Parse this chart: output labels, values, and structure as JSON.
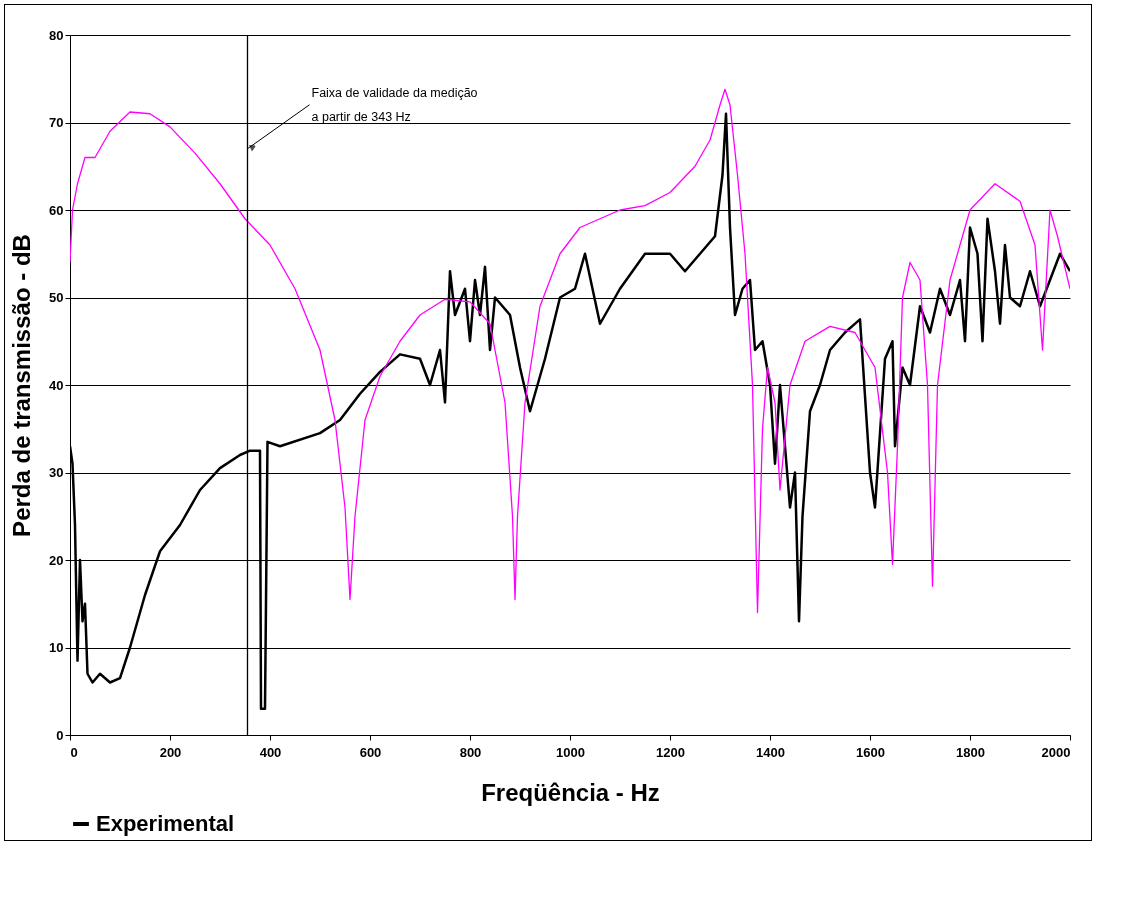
{
  "chart_data": {
    "type": "line",
    "xlabel": "Freqüência - Hz",
    "ylabel": "Perda de transmissão - dB",
    "xlim": [
      0,
      2000
    ],
    "ylim": [
      0,
      80
    ],
    "xticks": [
      0,
      200,
      400,
      600,
      800,
      1000,
      1200,
      1400,
      1600,
      1800,
      2000
    ],
    "yticks": [
      0,
      10,
      20,
      30,
      40,
      50,
      60,
      70,
      80
    ],
    "grid": "y",
    "legend": "bottom",
    "line_style": "solid",
    "ref_lines": [
      {
        "axis": "x",
        "value": 355,
        "color": "#000000"
      }
    ],
    "annotations": [
      {
        "text": "Faixa de validade da medição\na partir de 343 Hz",
        "x": 355,
        "y": 67
      }
    ],
    "series": [
      {
        "name": "Experimental",
        "color": "#000000",
        "x": [
          0,
          5,
          10,
          15,
          20,
          25,
          30,
          35,
          45,
          60,
          80,
          100,
          120,
          150,
          180,
          220,
          260,
          300,
          340,
          360,
          380,
          382,
          390,
          395,
          420,
          500,
          540,
          580,
          620,
          660,
          700,
          720,
          740,
          750,
          760,
          770,
          790,
          800,
          810,
          820,
          830,
          840,
          850,
          880,
          900,
          920,
          950,
          980,
          1010,
          1030,
          1060,
          1100,
          1150,
          1200,
          1230,
          1260,
          1290,
          1305,
          1312,
          1320,
          1330,
          1345,
          1360,
          1370,
          1385,
          1400,
          1410,
          1420,
          1440,
          1450,
          1458,
          1465,
          1480,
          1500,
          1520,
          1550,
          1580,
          1600,
          1610,
          1630,
          1645,
          1650,
          1665,
          1680,
          1700,
          1720,
          1740,
          1760,
          1780,
          1790,
          1800,
          1815,
          1825,
          1835,
          1850,
          1860,
          1870,
          1880,
          1900,
          1920,
          1940,
          1960,
          1980,
          2000
        ],
        "values": [
          33,
          31,
          24,
          8.5,
          20,
          13,
          15,
          7,
          6,
          7,
          6,
          6.5,
          10,
          16,
          21,
          24,
          28,
          30.5,
          32,
          32.5,
          32.5,
          3,
          3,
          33.5,
          33,
          34.5,
          36,
          39,
          41.5,
          43.5,
          43,
          40,
          44,
          38,
          53,
          48,
          51,
          45,
          52,
          48,
          53.5,
          44,
          50,
          48,
          42,
          37,
          43,
          50,
          51,
          55,
          47,
          51,
          55,
          55,
          53,
          55,
          57,
          64,
          71,
          58,
          48,
          51,
          52,
          44,
          45,
          40,
          31,
          40,
          26,
          30,
          13,
          25,
          37,
          40,
          44,
          46,
          47.5,
          30,
          26,
          43,
          45,
          33,
          42,
          40,
          49,
          46,
          51,
          48,
          52,
          45,
          58,
          55,
          45,
          59,
          53,
          47,
          56,
          50,
          49,
          53,
          49,
          52,
          55,
          53
        ]
      },
      {
        "color": "#ff00ff",
        "x": [
          0,
          5,
          15,
          30,
          50,
          80,
          120,
          160,
          200,
          250,
          300,
          350,
          400,
          450,
          500,
          530,
          550,
          560,
          570,
          590,
          620,
          660,
          700,
          750,
          800,
          840,
          870,
          885,
          890,
          895,
          910,
          940,
          980,
          1020,
          1100,
          1150,
          1200,
          1250,
          1280,
          1300,
          1310,
          1320,
          1335,
          1350,
          1365,
          1375,
          1385,
          1395,
          1410,
          1420,
          1440,
          1470,
          1520,
          1570,
          1610,
          1635,
          1645,
          1655,
          1665,
          1680,
          1700,
          1715,
          1725,
          1735,
          1760,
          1800,
          1850,
          1900,
          1930,
          1945,
          1960,
          1975,
          2000
        ],
        "values": [
          54,
          60,
          63,
          66,
          66,
          69,
          71.2,
          71,
          69.5,
          66.5,
          63,
          59,
          56,
          51,
          44,
          36,
          26,
          15.5,
          25,
          36,
          41,
          45,
          48,
          49.8,
          49.5,
          47,
          38,
          25,
          15.5,
          25,
          38,
          49,
          55,
          58,
          60,
          60.5,
          62,
          65,
          68,
          72,
          73.8,
          72,
          64,
          55,
          40,
          14,
          35,
          42,
          38,
          28,
          40,
          45,
          46.7,
          46,
          42,
          30,
          19.5,
          33,
          50,
          54,
          52,
          40,
          17,
          40,
          52,
          60,
          63,
          61,
          56,
          44,
          60,
          57,
          51
        ]
      }
    ]
  }
}
